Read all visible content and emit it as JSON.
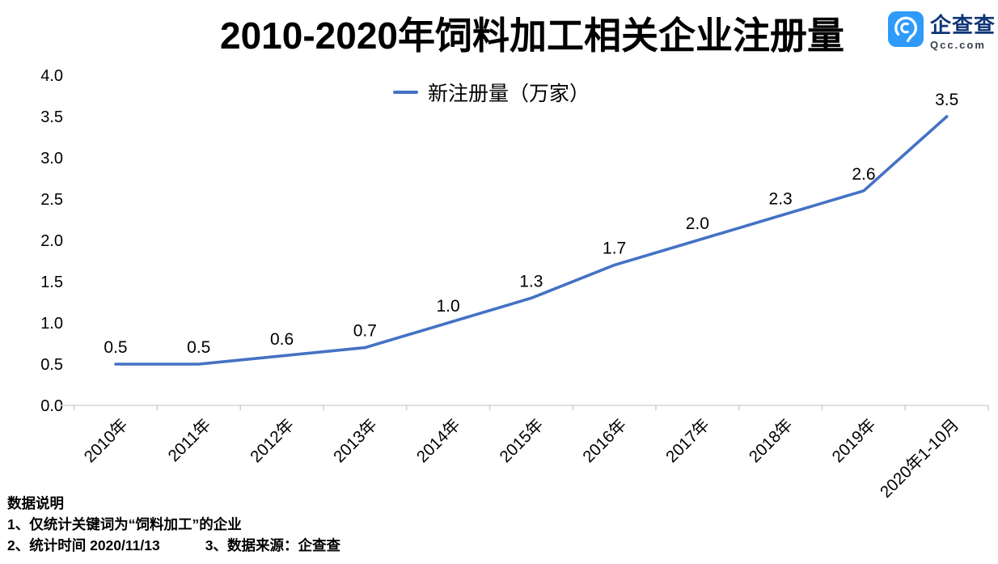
{
  "header": {
    "title": "2010-2020年饲料加工相关企业注册量",
    "logo": {
      "brand": "企查查",
      "domain": "Qcc.com",
      "square_color": "#2e9bfa",
      "brand_text_color": "#0f3575",
      "domain_text_color": "#37404a"
    }
  },
  "legend": {
    "label": "新注册量（万家）"
  },
  "chart_data": {
    "type": "line",
    "title": "2010-2020年饲料加工相关企业注册量",
    "categories": [
      "2010年",
      "2011年",
      "2012年",
      "2013年",
      "2014年",
      "2015年",
      "2016年",
      "2017年",
      "2018年",
      "2019年",
      "2020年1-10月"
    ],
    "series": [
      {
        "name": "新注册量（万家）",
        "values": [
          0.5,
          0.5,
          0.6,
          0.7,
          1.0,
          1.3,
          1.7,
          2.0,
          2.3,
          2.6,
          3.5
        ],
        "color": "#4472c4"
      }
    ],
    "data_labels": [
      "0.5",
      "0.5",
      "0.6",
      "0.7",
      "1.0",
      "1.3",
      "1.7",
      "2.0",
      "2.3",
      "2.6",
      "3.5"
    ],
    "ylim": [
      0.0,
      4.0
    ],
    "ytick_step": 0.5,
    "ytick_labels": [
      "0.0",
      "0.5",
      "1.0",
      "1.5",
      "2.0",
      "2.5",
      "3.0",
      "3.5",
      "4.0"
    ],
    "grid": false,
    "legend_position": "top-center",
    "axis_color": "#d6d6d6",
    "tick_color": "#c9c9c9",
    "text_color": "#000000"
  },
  "footer": {
    "heading": "数据说明",
    "note1": "1、仅统计关键词为“饲料加工”的企业",
    "note2": "2、统计时间 2020/11/13",
    "note3": "3、数据来源：企查查"
  }
}
